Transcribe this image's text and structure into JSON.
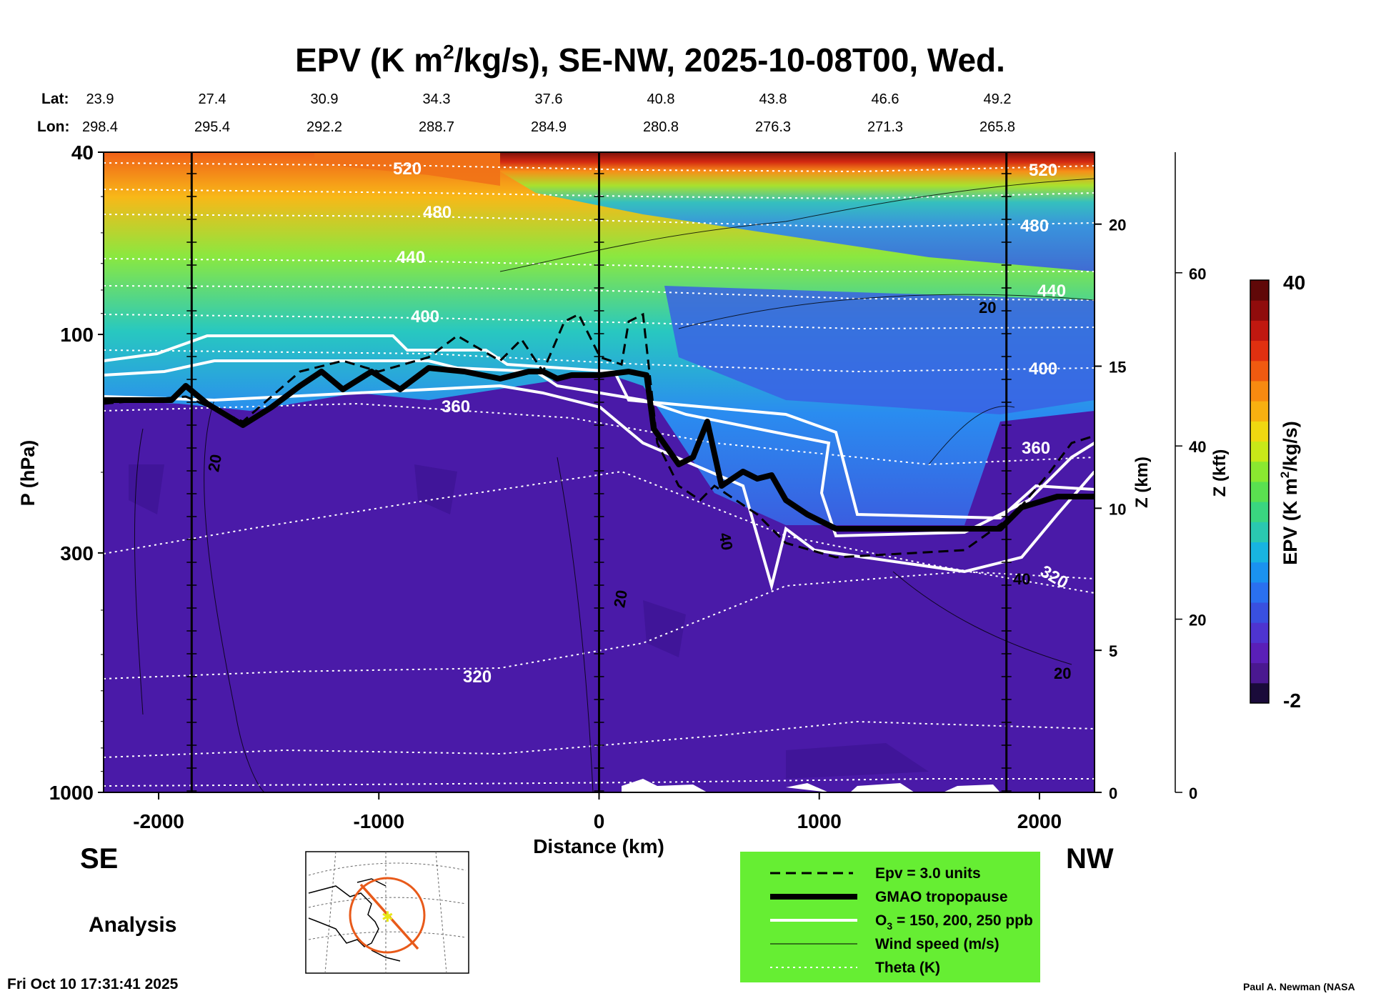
{
  "chart_data": {
    "type": "heatmap",
    "title_parts": {
      "pre": "EPV (K m",
      "sup": "2",
      "post": "/kg/s), SE-NW, 2025-10-08T00, Wed."
    },
    "lat_label": "Lat:",
    "lon_label": "Lon:",
    "lats": [
      "23.9",
      "27.4",
      "30.9",
      "34.3",
      "37.6",
      "40.8",
      "43.8",
      "46.6",
      "49.2"
    ],
    "lons": [
      "298.4",
      "295.4",
      "292.2",
      "288.7",
      "284.9",
      "280.8",
      "276.3",
      "271.3",
      "265.8"
    ],
    "xlabel": "Distance (km)",
    "x_range": [
      -2250,
      2250
    ],
    "x_ticks": [
      "-2000",
      "-1000",
      "0",
      "1000",
      "2000"
    ],
    "x_tick_values": [
      -2000,
      -1000,
      0,
      1000,
      2000
    ],
    "ylabel": "P (hPa)",
    "y_range_hpa": [
      1000,
      40
    ],
    "y_ticks": [
      "40",
      "100",
      "300",
      "1000"
    ],
    "y_tick_values": [
      40,
      100,
      300,
      1000
    ],
    "z_km_label": "Z (km)",
    "z_km_ticks": [
      "0",
      "5",
      "10",
      "15",
      "20"
    ],
    "z_kft_label": "Z (kft)",
    "z_kft_ticks": [
      "0",
      "20",
      "40",
      "60"
    ],
    "colorbar": {
      "label_pre": "EPV (K m",
      "label_sup": "2",
      "label_post": "/kg/s)",
      "max_label": "40",
      "min_label": "-2",
      "colors": [
        "#1a0b3a",
        "#4a1890",
        "#5a1fb8",
        "#4e34d0",
        "#3950e0",
        "#2a70f0",
        "#1a92f0",
        "#18b4e0",
        "#2ac8b0",
        "#3ad680",
        "#5ae050",
        "#8ae830",
        "#c8e818",
        "#f0d810",
        "#f8b010",
        "#f88a10",
        "#f05a10",
        "#e03010",
        "#c01810",
        "#900c0c",
        "#600808"
      ]
    },
    "theta_contour_labels": [
      "520",
      "480",
      "440",
      "400",
      "360",
      "320"
    ],
    "wind_contour_labels": [
      "20",
      "40"
    ],
    "legend": {
      "items": [
        {
          "key": "epv",
          "label": "Epv = 3.0 units"
        },
        {
          "key": "tropopause",
          "label": "GMAO tropopause"
        },
        {
          "key": "ozone",
          "label_pre": "O",
          "label_sub": "3",
          "label_post": " = 150, 200, 250 ppb"
        },
        {
          "key": "wind",
          "label": "Wind speed (m/s)"
        },
        {
          "key": "theta",
          "label": "Theta (K)"
        }
      ],
      "background": "#66ee33"
    },
    "endpoints": {
      "left": "SE",
      "right": "NW"
    },
    "analysis_label": "Analysis",
    "timestamp": "Fri Oct 10 17:31:41 2025",
    "credit": "Paul A. Newman (NASA"
  }
}
